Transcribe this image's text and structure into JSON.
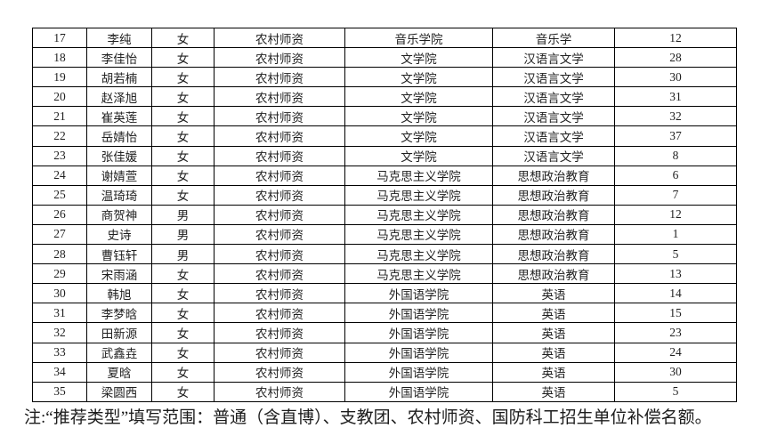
{
  "table": {
    "rows": [
      [
        "17",
        "李纯",
        "女",
        "农村师资",
        "音乐学院",
        "音乐学",
        "12"
      ],
      [
        "18",
        "李佳怡",
        "女",
        "农村师资",
        "文学院",
        "汉语言文学",
        "28"
      ],
      [
        "19",
        "胡若楠",
        "女",
        "农村师资",
        "文学院",
        "汉语言文学",
        "30"
      ],
      [
        "20",
        "赵泽旭",
        "女",
        "农村师资",
        "文学院",
        "汉语言文学",
        "31"
      ],
      [
        "21",
        "崔英莲",
        "女",
        "农村师资",
        "文学院",
        "汉语言文学",
        "32"
      ],
      [
        "22",
        "岳婧怡",
        "女",
        "农村师资",
        "文学院",
        "汉语言文学",
        "37"
      ],
      [
        "23",
        "张佳媛",
        "女",
        "农村师资",
        "文学院",
        "汉语言文学",
        "8"
      ],
      [
        "24",
        "谢婧萱",
        "女",
        "农村师资",
        "马克思主义学院",
        "思想政治教育",
        "6"
      ],
      [
        "25",
        "温琦琦",
        "女",
        "农村师资",
        "马克思主义学院",
        "思想政治教育",
        "7"
      ],
      [
        "26",
        "商贺神",
        "男",
        "农村师资",
        "马克思主义学院",
        "思想政治教育",
        "12"
      ],
      [
        "27",
        "史诗",
        "男",
        "农村师资",
        "马克思主义学院",
        "思想政治教育",
        "1"
      ],
      [
        "28",
        "曹钰轩",
        "男",
        "农村师资",
        "马克思主义学院",
        "思想政治教育",
        "5"
      ],
      [
        "29",
        "宋雨涵",
        "女",
        "农村师资",
        "马克思主义学院",
        "思想政治教育",
        "13"
      ],
      [
        "30",
        "韩旭",
        "女",
        "农村师资",
        "外国语学院",
        "英语",
        "14"
      ],
      [
        "31",
        "李梦晗",
        "女",
        "农村师资",
        "外国语学院",
        "英语",
        "15"
      ],
      [
        "32",
        "田新源",
        "女",
        "农村师资",
        "外国语学院",
        "英语",
        "23"
      ],
      [
        "33",
        "武鑫垚",
        "女",
        "农村师资",
        "外国语学院",
        "英语",
        "24"
      ],
      [
        "34",
        "夏晗",
        "女",
        "农村师资",
        "外国语学院",
        "英语",
        "30"
      ],
      [
        "35",
        "梁圆西",
        "女",
        "农村师资",
        "外国语学院",
        "英语",
        "5"
      ]
    ]
  },
  "footnote": "注:“推荐类型”填写范围：普通（含直博）、支教团、农村师资、国防科工招生单位补偿名额。"
}
